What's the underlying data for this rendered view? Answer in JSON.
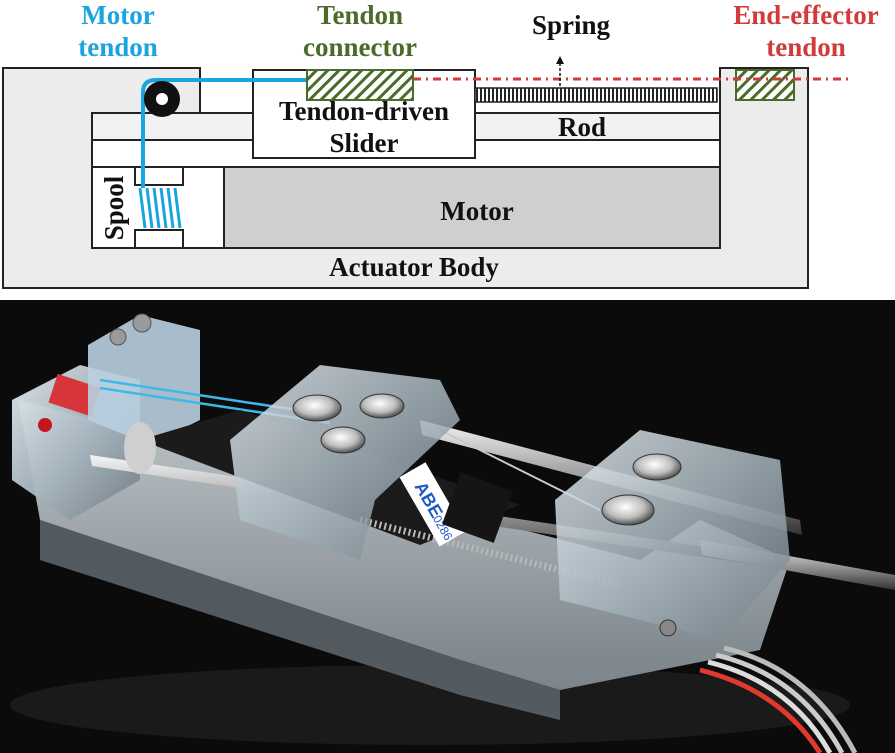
{
  "diagram": {
    "labels": {
      "motor_tendon": [
        "Motor",
        "tendon"
      ],
      "tendon_connector": [
        "Tendon",
        "connector"
      ],
      "spring": "Spring",
      "end_effector_tendon": [
        "End-effector",
        "tendon"
      ],
      "tendon_driven_slider": [
        "Tendon-driven",
        "Slider"
      ],
      "rod": "Rod",
      "motor": "Motor",
      "spool": "Spool",
      "actuator_body": "Actuator Body"
    },
    "colors": {
      "motor_tendon": "#1aa5e0",
      "tendon_connector": "#4a6b2a",
      "end_effector_tendon": "#d13b3b",
      "motor_fill": "#cfcfcf",
      "body_fill": "#ececec",
      "rod_fill": "#f2f2f2",
      "text": "#111111"
    }
  },
  "photo": {
    "label_fragment": "ABE",
    "label_number": "0286"
  }
}
